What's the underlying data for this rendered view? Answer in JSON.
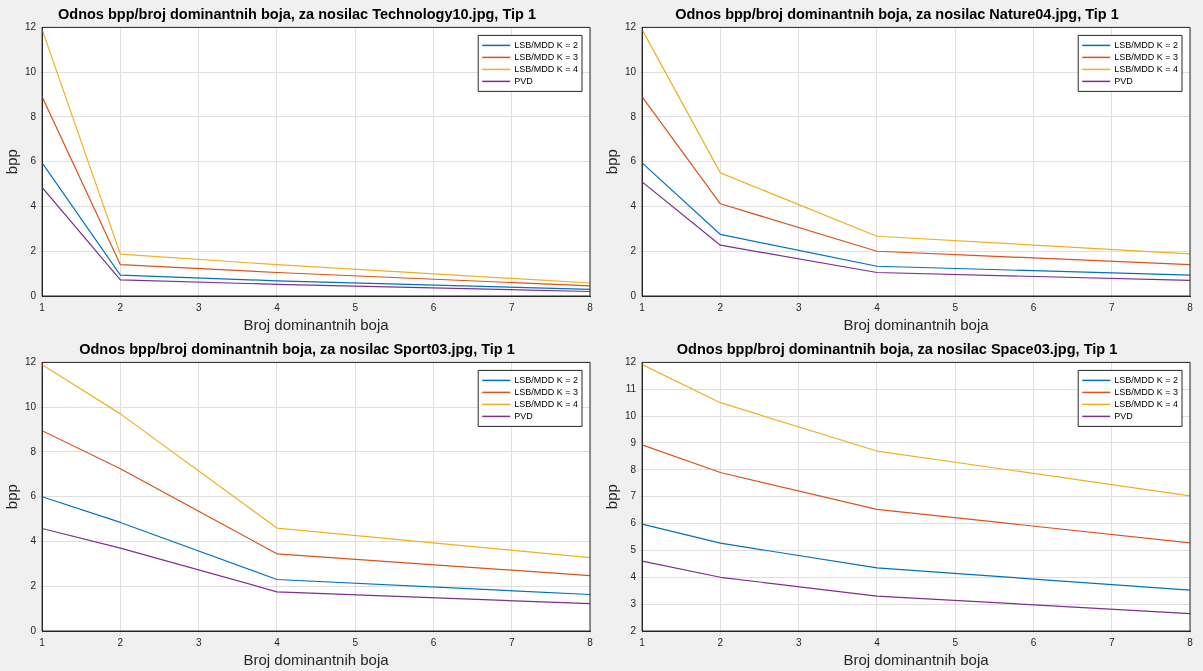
{
  "chart_data": [
    {
      "type": "line",
      "title": "Odnos bpp/broj dominantnih boja, za nosilac Technology10.jpg, Tip 1",
      "xlabel": "Broj dominantnih boja",
      "ylabel": "bpp",
      "x": [
        1,
        2,
        4,
        8
      ],
      "xlim": [
        1,
        8
      ],
      "xticks": [
        1,
        2,
        3,
        4,
        5,
        6,
        7,
        8
      ],
      "ylim": [
        0,
        12
      ],
      "yticks": [
        0,
        2,
        4,
        6,
        8,
        10,
        12
      ],
      "grid": true,
      "legend": "top right",
      "marker": "none",
      "series": [
        {
          "name": "LSB/MDD K = 2",
          "color": "#0072bd",
          "values": [
            5.95,
            0.93,
            0.68,
            0.3
          ]
        },
        {
          "name": "LSB/MDD K = 3",
          "color": "#d95319",
          "values": [
            8.9,
            1.4,
            1.05,
            0.45
          ]
        },
        {
          "name": "LSB/MDD K = 4",
          "color": "#edb120",
          "values": [
            11.9,
            1.87,
            1.4,
            0.58
          ]
        },
        {
          "name": "PVD",
          "color": "#7e2f8e",
          "values": [
            4.85,
            0.72,
            0.52,
            0.2
          ]
        }
      ]
    },
    {
      "type": "line",
      "title": "Odnos bpp/broj dominantnih boja, za nosilac Nature04.jpg, Tip 1",
      "xlabel": "Broj dominantnih boja",
      "ylabel": "bpp",
      "x": [
        1,
        2,
        4,
        8
      ],
      "xlim": [
        1,
        8
      ],
      "xticks": [
        1,
        2,
        3,
        4,
        5,
        6,
        7,
        8
      ],
      "ylim": [
        0,
        12
      ],
      "yticks": [
        0,
        2,
        4,
        6,
        8,
        10,
        12
      ],
      "grid": true,
      "legend": "top right",
      "marker": "none",
      "series": [
        {
          "name": "LSB/MDD K = 2",
          "color": "#0072bd",
          "values": [
            5.95,
            2.75,
            1.33,
            0.93
          ]
        },
        {
          "name": "LSB/MDD K = 3",
          "color": "#d95319",
          "values": [
            8.9,
            4.12,
            2.0,
            1.4
          ]
        },
        {
          "name": "LSB/MDD K = 4",
          "color": "#edb120",
          "values": [
            11.9,
            5.5,
            2.67,
            1.88
          ]
        },
        {
          "name": "PVD",
          "color": "#7e2f8e",
          "values": [
            5.1,
            2.27,
            1.05,
            0.7
          ]
        }
      ]
    },
    {
      "type": "line",
      "title": "Odnos bpp/broj dominantnih boja, za nosilac Sport03.jpg, Tip 1",
      "xlabel": "Broj dominantnih boja",
      "ylabel": "bpp",
      "x": [
        1,
        2,
        4,
        8
      ],
      "xlim": [
        1,
        8
      ],
      "xticks": [
        1,
        2,
        3,
        4,
        5,
        6,
        7,
        8
      ],
      "ylim": [
        0,
        12
      ],
      "yticks": [
        0,
        2,
        4,
        6,
        8,
        10,
        12
      ],
      "grid": true,
      "legend": "top right",
      "marker": "none",
      "series": [
        {
          "name": "LSB/MDD K = 2",
          "color": "#0072bd",
          "values": [
            6.0,
            4.85,
            2.3,
            1.63
          ]
        },
        {
          "name": "LSB/MDD K = 3",
          "color": "#d95319",
          "values": [
            8.95,
            7.25,
            3.45,
            2.47
          ]
        },
        {
          "name": "LSB/MDD K = 4",
          "color": "#edb120",
          "values": [
            11.9,
            9.7,
            4.6,
            3.28
          ]
        },
        {
          "name": "PVD",
          "color": "#7e2f8e",
          "values": [
            4.58,
            3.7,
            1.75,
            1.22
          ]
        }
      ]
    },
    {
      "type": "line",
      "title": "Odnos bpp/broj dominantnih boja, za nosilac Space03.jpg, Tip 1",
      "xlabel": "Broj dominantnih boja",
      "ylabel": "bpp",
      "x": [
        1,
        2,
        4,
        8
      ],
      "xlim": [
        1,
        8
      ],
      "xticks": [
        1,
        2,
        3,
        4,
        5,
        6,
        7,
        8
      ],
      "ylim": [
        2,
        12
      ],
      "yticks": [
        2,
        3,
        4,
        5,
        6,
        7,
        8,
        9,
        10,
        11,
        12
      ],
      "grid": true,
      "legend": "top right",
      "marker": "none",
      "series": [
        {
          "name": "LSB/MDD K = 2",
          "color": "#0072bd",
          "values": [
            5.98,
            5.27,
            4.35,
            3.52
          ]
        },
        {
          "name": "LSB/MDD K = 3",
          "color": "#d95319",
          "values": [
            8.93,
            7.9,
            6.53,
            5.28
          ]
        },
        {
          "name": "LSB/MDD K = 4",
          "color": "#edb120",
          "values": [
            11.92,
            10.5,
            8.7,
            7.03
          ]
        },
        {
          "name": "PVD",
          "color": "#7e2f8e",
          "values": [
            4.6,
            4.0,
            3.3,
            2.65
          ]
        }
      ]
    }
  ]
}
